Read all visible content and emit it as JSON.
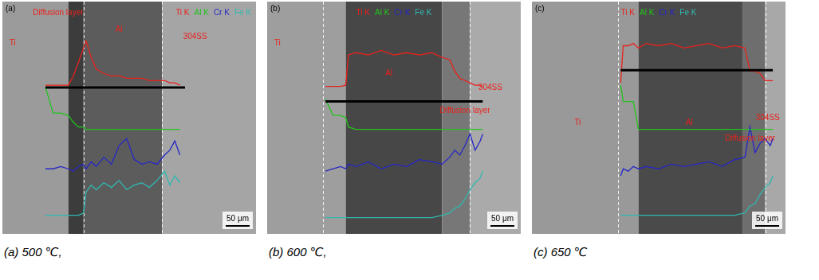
{
  "chart_data": [
    {
      "type": "line",
      "title": "(a) 500 ℃,",
      "panel": "(a)",
      "legend": "top right",
      "grid": false,
      "tick_labels": false,
      "xlim": [
        0,
        100
      ],
      "ylim": [
        0,
        100
      ],
      "x": [
        17,
        20,
        23,
        26,
        28,
        30,
        32,
        33,
        35,
        37,
        40,
        43,
        46,
        49,
        52,
        55,
        58,
        61,
        64,
        66,
        68,
        70
      ],
      "series": [
        {
          "name": "Ti K",
          "color": "#e8221c",
          "values": [
            64,
            64,
            64,
            64,
            68,
            74,
            80,
            83,
            76,
            71,
            69,
            68,
            68,
            67,
            67,
            67,
            66,
            66,
            66,
            65,
            65,
            64
          ]
        },
        {
          "name": "Al K",
          "color": "#22c41c",
          "values": [
            63,
            52,
            52,
            51,
            48,
            46,
            46,
            45,
            45,
            45,
            45,
            45,
            45,
            45,
            45,
            45,
            45,
            45,
            45,
            45,
            45,
            45
          ]
        },
        {
          "name": "Cr K",
          "color": "#2626c8",
          "values": [
            28,
            28,
            29,
            28,
            27,
            29,
            30,
            28,
            31,
            29,
            33,
            30,
            38,
            41,
            32,
            30,
            31,
            30,
            34,
            36,
            40,
            34
          ]
        },
        {
          "name": "Fe K",
          "color": "#30b8b0",
          "values": [
            8,
            8,
            8,
            8,
            8,
            8,
            9,
            18,
            21,
            19,
            22,
            20,
            23,
            19,
            21,
            22,
            20,
            23,
            27,
            21,
            25,
            22
          ]
        }
      ],
      "regions": [
        {
          "name": "Ti",
          "x": [
            0,
            26
          ],
          "color": "#9b9b9b",
          "label_at": [
            4,
            82
          ]
        },
        {
          "name": "Diffusion layer",
          "x": [
            26,
            32
          ],
          "color": "#3c3c3c",
          "label_at": [
            22,
            95
          ]
        },
        {
          "name": "Al",
          "x": [
            32,
            63
          ],
          "color": "#5c5c5c",
          "label_at": [
            46,
            88
          ]
        },
        {
          "name": "304SS",
          "x": [
            63,
            100
          ],
          "color": "#a5a5a5",
          "label_at": [
            76,
            85
          ]
        }
      ],
      "boundaries": [
        32,
        63
      ],
      "scan_line": {
        "x": [
          17,
          72
        ],
        "y": 63
      },
      "scale_bar": "50 μm"
    },
    {
      "type": "line",
      "title": "(b) 600 ℃,",
      "panel": "(b)",
      "legend": "top",
      "grid": false,
      "tick_labels": false,
      "xlim": [
        0,
        100
      ],
      "ylim": [
        0,
        100
      ],
      "x": [
        23,
        26,
        29,
        31,
        32,
        35,
        40,
        45,
        50,
        55,
        60,
        65,
        69,
        72,
        74,
        76,
        78,
        80,
        82,
        84,
        85
      ],
      "series": [
        {
          "name": "Ti K",
          "color": "#e8221c",
          "values": [
            63.5,
            63.5,
            63.5,
            64,
            77,
            78,
            77,
            79,
            77,
            78,
            77,
            78,
            76,
            75,
            70,
            67,
            66,
            65,
            64,
            64,
            63
          ]
        },
        {
          "name": "Al K",
          "color": "#22c41c",
          "values": [
            58,
            51,
            51,
            50,
            46,
            45,
            45,
            45,
            45,
            45,
            45,
            45,
            45,
            45,
            45,
            45,
            45,
            45,
            45,
            45,
            45
          ]
        },
        {
          "name": "Cr K",
          "color": "#2626c8",
          "values": [
            27,
            28,
            29,
            28,
            30,
            29,
            31,
            28,
            30,
            29,
            32,
            31,
            30,
            33,
            36,
            34,
            38,
            43,
            36,
            40,
            43
          ]
        },
        {
          "name": "Fe K",
          "color": "#30b8b0",
          "values": [
            7,
            7,
            7,
            7,
            7,
            7,
            7,
            7,
            7,
            7,
            7,
            7,
            8,
            9,
            11,
            12,
            15,
            19,
            22,
            24,
            27
          ]
        }
      ],
      "regions": [
        {
          "name": "Ti",
          "x": [
            0,
            31
          ],
          "color": "#9e9e9e",
          "label_at": [
            4,
            82
          ]
        },
        {
          "name": "Al",
          "x": [
            31,
            69
          ],
          "color": "#474747",
          "label_at": [
            48,
            69
          ]
        },
        {
          "name": "Diffusion layer",
          "x": [
            69,
            80
          ],
          "color": "#777777",
          "label_at": [
            78,
            53
          ]
        },
        {
          "name": "304SS",
          "x": [
            80,
            100
          ],
          "color": "#aaaaaa",
          "label_at": [
            88,
            63
          ]
        }
      ],
      "boundaries": [
        22,
        80
      ],
      "scan_line": {
        "x": [
          23,
          85
        ],
        "y": 57
      },
      "scale_bar": "50 μm"
    },
    {
      "type": "line",
      "title": "(c) 650 ℃",
      "panel": "(c)",
      "legend": "top",
      "grid": false,
      "tick_labels": false,
      "xlim": [
        0,
        100
      ],
      "ylim": [
        0,
        100
      ],
      "x": [
        35,
        36,
        38,
        40,
        42,
        45,
        50,
        55,
        60,
        65,
        70,
        75,
        80,
        84,
        86,
        88,
        90,
        92,
        94,
        95
      ],
      "series": [
        {
          "name": "Ti K",
          "color": "#e8221c",
          "values": [
            65,
            81,
            81,
            82,
            80,
            82,
            81,
            82,
            80,
            81,
            82,
            80,
            81,
            80,
            70,
            70,
            69,
            66,
            66,
            66
          ]
        },
        {
          "name": "Al K",
          "color": "#22c41c",
          "values": [
            64,
            57,
            57,
            57,
            45,
            45,
            45,
            45,
            45,
            45,
            45,
            45,
            45,
            45,
            45,
            45,
            45,
            45,
            45,
            45
          ]
        },
        {
          "name": "Cr K",
          "color": "#2626c8",
          "values": [
            25,
            28,
            27,
            29,
            28,
            29,
            28,
            30,
            29,
            30,
            31,
            29,
            32,
            33,
            46,
            35,
            39,
            41,
            38,
            41
          ]
        },
        {
          "name": "Fe K",
          "color": "#30b8b0",
          "values": [
            8,
            8,
            8,
            8,
            8,
            8,
            8,
            8,
            8,
            8,
            8,
            8,
            8,
            9,
            12,
            13,
            17,
            20,
            22,
            25
          ]
        }
      ],
      "regions": [
        {
          "name": "Ti",
          "x": [
            0,
            42
          ],
          "color": "#999999",
          "label_at": [
            18,
            48
          ]
        },
        {
          "name": "Al",
          "x": [
            42,
            83
          ],
          "color": "#4a4a4a",
          "label_at": [
            62,
            48
          ]
        },
        {
          "name": "Diffusion layer",
          "x": [
            83,
            92
          ],
          "color": "#6e6e6e",
          "label_at": [
            86,
            41
          ]
        },
        {
          "name": "304SS",
          "x": [
            92,
            100
          ],
          "color": "#a8a8a8",
          "label_at": [
            93,
            50
          ]
        }
      ],
      "boundaries": [
        34,
        92
      ],
      "scan_line": {
        "x": [
          35,
          95
        ],
        "y": 70.5
      },
      "scale_bar": "50 μm"
    }
  ]
}
